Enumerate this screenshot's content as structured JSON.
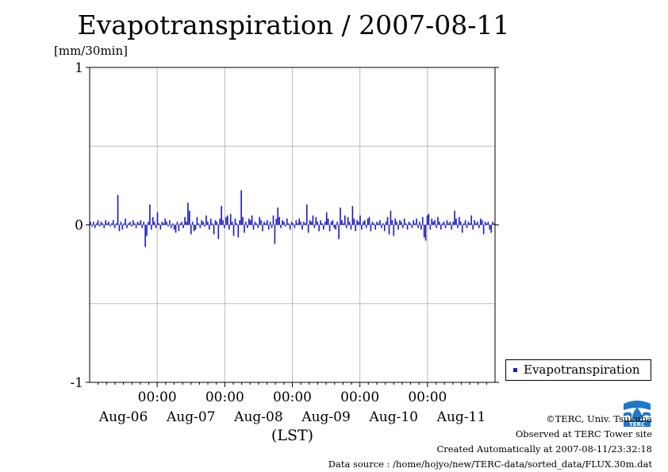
{
  "title": "Evapotranspiration / 2007-08-11",
  "unit": "[mm/30min]",
  "legend": {
    "label": "Evapotranspiration",
    "color": "#1a1ac8"
  },
  "chart_data": {
    "type": "bar",
    "title": "Evapotranspiration / 2007-08-11",
    "ylabel": "[mm/30min]",
    "xlabel": "(LST)",
    "ylim": [
      -1,
      1
    ],
    "yticks": [
      1,
      0,
      -1
    ],
    "xlim": [
      0,
      6
    ],
    "x_units": "days since Aug-06 00:00 LST",
    "time_ticks": [
      "00:00",
      "00:00",
      "00:00",
      "00:00",
      "00:00"
    ],
    "day_labels": [
      "Aug-06",
      "Aug-07",
      "Aug-08",
      "Aug-09",
      "Aug-10",
      "Aug-11"
    ],
    "grid": true,
    "legend_position": "right",
    "series": [
      {
        "name": "Evapotranspiration",
        "color": "#1a1ac8",
        "sampling": "30min",
        "values": [
          0.02,
          -0.01,
          0.02,
          -0.02,
          0.01,
          0.03,
          -0.01,
          0.02,
          0.01,
          -0.02,
          0.03,
          0.01,
          0.02,
          -0.01,
          0.01,
          0.03,
          -0.02,
          0.01,
          0.19,
          -0.04,
          0.02,
          -0.03,
          0.01,
          0.04,
          -0.02,
          0.01,
          0.02,
          -0.01,
          0.03,
          0.01,
          -0.02,
          0.02,
          0.01,
          0.03,
          -0.02,
          0.02,
          -0.14,
          -0.07,
          0.02,
          0.13,
          -0.03,
          0.05,
          0.02,
          -0.02,
          0.08,
          0.01,
          -0.03,
          0.02,
          0.01,
          0.04,
          0.02,
          -0.01,
          0.03,
          -0.02,
          0.01,
          -0.03,
          -0.05,
          0.02,
          -0.04,
          0.01,
          0.02,
          -0.02,
          0.05,
          0.02,
          0.14,
          0.09,
          -0.06,
          0.02,
          -0.04,
          -0.03,
          0.05,
          0.01,
          -0.02,
          0.03,
          0.02,
          -0.01,
          0.06,
          0.02,
          -0.03,
          0.04,
          0.01,
          -0.06,
          0.03,
          0.02,
          -0.09,
          0.04,
          0.12,
          0.03,
          -0.02,
          0.05,
          0.06,
          -0.03,
          0.07,
          0.02,
          -0.07,
          0.04,
          0.01,
          -0.08,
          0.03,
          0.22,
          0.05,
          -0.05,
          0.02,
          -0.02,
          0.04,
          0.03,
          0.06,
          -0.03,
          0.02,
          0.01,
          -0.02,
          0.05,
          0.03,
          -0.04,
          0.02,
          0.01,
          0.03,
          -0.03,
          0.02,
          -0.02,
          0.06,
          -0.12,
          0.04,
          0.11,
          0.05,
          -0.02,
          0.03,
          0.02,
          -0.01,
          0.04,
          0.01,
          -0.03,
          0.02,
          0.01,
          -0.02,
          0.03,
          0.01,
          0.04,
          0.02,
          -0.03,
          0.02,
          0.01,
          0.13,
          -0.05,
          0.03,
          0.02,
          0.06,
          -0.02,
          0.05,
          0.02,
          -0.04,
          0.03,
          0.01,
          -0.03,
          0.02,
          0.08,
          0.04,
          -0.04,
          0.02,
          0.03,
          -0.02,
          -0.03,
          0.02,
          -0.09,
          0.11,
          0.03,
          0.01,
          0.06,
          -0.02,
          0.05,
          0.02,
          -0.03,
          0.12,
          0.04,
          -0.04,
          0.03,
          0.02,
          0.06,
          -0.03,
          0.02,
          0.03,
          -0.02,
          0.04,
          0.05,
          -0.04,
          0.02,
          0.01,
          -0.03,
          0.02,
          0.01,
          0.03,
          -0.02,
          0.01,
          -0.04,
          0.02,
          0.05,
          -0.06,
          0.09,
          0.03,
          -0.07,
          0.04,
          0.02,
          -0.03,
          0.03,
          0.02,
          -0.02,
          0.04,
          0.01,
          -0.03,
          0.02,
          0.01,
          -0.02,
          0.03,
          0.01,
          0.04,
          -0.02,
          0.02,
          -0.03,
          0.05,
          -0.08,
          -0.1,
          0.06,
          0.07,
          -0.03,
          0.04,
          0.02,
          0.03,
          -0.02,
          0.05,
          0.02,
          -0.03,
          0.01,
          0.02,
          -0.02,
          0.03,
          0.01,
          0.02,
          -0.03,
          0.02,
          0.09,
          0.04,
          -0.02,
          0.05,
          0.02,
          -0.05,
          0.01,
          0.03,
          -0.02,
          0.02,
          0.01,
          0.06,
          -0.03,
          0.03,
          0.01,
          0.02,
          -0.02,
          0.04,
          0.03,
          -0.06,
          0.02,
          0.01,
          0.02,
          -0.03,
          -0.05,
          0.02,
          0.01
        ]
      }
    ]
  },
  "logo_text": "TERC",
  "credits": [
    "©TERC, Univ. Tsukuba",
    "Observed at TERC Tower site",
    "Created Automatically at 2007-08-11/23:32:18",
    "Data source : /home/hojyo/new/TERC-data/sorted_data/FLUX.30m.dat"
  ]
}
